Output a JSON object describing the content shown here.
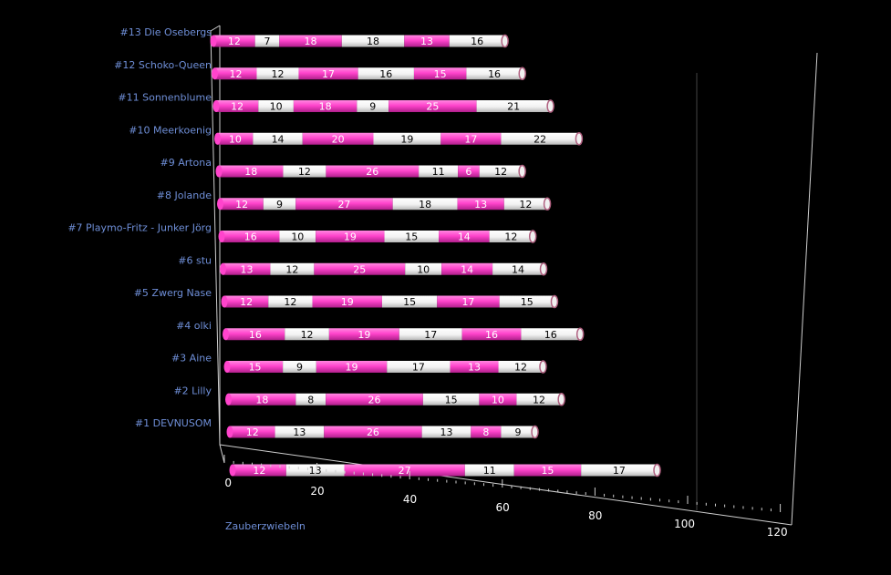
{
  "colors": {
    "background": "#000000",
    "segment_a": "#ff44cc",
    "segment_b": "#ffffff",
    "label_on_a": "#ffffff",
    "label_on_b": "#000000",
    "category_text": "#6f8fd8",
    "axis": "#cfcfcf"
  },
  "chart_data": {
    "type": "bar",
    "orientation": "horizontal",
    "stacked": true,
    "style": "3d-cylinder",
    "title": "",
    "xlabel": "Zauberzwiebeln",
    "ylabel": "",
    "xlim": [
      0,
      120
    ],
    "x_ticks": [
      "0",
      "20",
      "40",
      "60",
      "80",
      "100",
      "120"
    ],
    "grid": false,
    "legend": "none",
    "categories": [
      "#1 DEVNUSOM",
      "#2 Lilly",
      "#3 Aine",
      "#4 olki",
      "#5 Zwerg Nase",
      "#6 stu",
      "#7 Playmo-Fritz - Junker Jörg",
      "#8 Jolande",
      "#9 Artona",
      "#10 Meerkoenig",
      "#11 Sonnenblume",
      "#12 Schoko-Queen",
      "#13 Die Osebergs"
    ],
    "bottom_row_values": [
      12,
      13,
      27,
      11,
      15,
      17
    ],
    "series": [
      {
        "values": [
          12,
          18,
          15,
          16,
          12,
          13,
          16,
          12,
          18,
          10,
          12,
          12,
          12
        ]
      },
      {
        "values": [
          13,
          8,
          9,
          12,
          12,
          12,
          10,
          9,
          12,
          14,
          10,
          12,
          7
        ]
      },
      {
        "values": [
          26,
          26,
          19,
          19,
          19,
          25,
          19,
          27,
          26,
          20,
          18,
          17,
          18
        ]
      },
      {
        "values": [
          13,
          15,
          17,
          17,
          15,
          10,
          15,
          18,
          11,
          19,
          9,
          16,
          18
        ]
      },
      {
        "values": [
          8,
          10,
          13,
          16,
          17,
          14,
          14,
          13,
          6,
          17,
          25,
          15,
          13
        ]
      },
      {
        "values": [
          9,
          12,
          12,
          16,
          15,
          14,
          12,
          12,
          12,
          22,
          21,
          16,
          16
        ]
      }
    ]
  }
}
